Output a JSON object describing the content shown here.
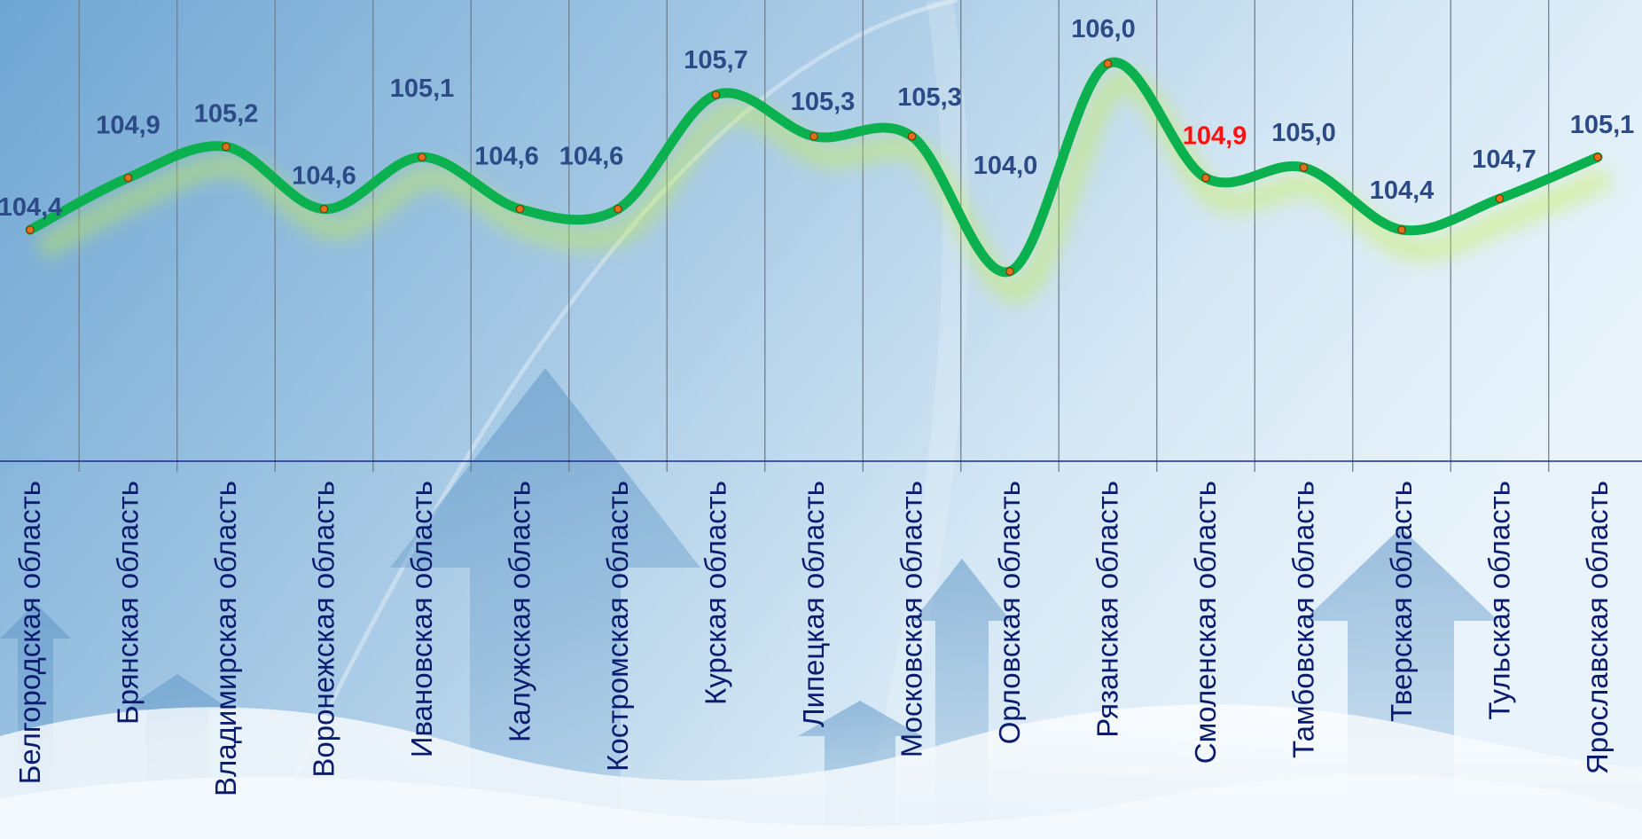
{
  "chart_data": {
    "type": "line",
    "categories": [
      "Белгородская область",
      "Брянская область",
      "Владимирская область",
      "Воронежская область",
      "Ивановская область",
      "Калужская область",
      "Костромская область",
      "Курская область",
      "Липецкая область",
      "Московская область",
      "Орловская область",
      "Рязанская область",
      "Смоленская область",
      "Тамбовская область",
      "Тверская область",
      "Тульская область",
      "Ярославская область"
    ],
    "values": [
      104.4,
      104.9,
      105.2,
      104.6,
      105.1,
      104.6,
      104.6,
      105.7,
      105.3,
      105.3,
      104.0,
      106.0,
      104.9,
      105.0,
      104.4,
      104.7,
      105.1
    ],
    "data_labels": [
      "104,4",
      "104,9",
      "105,2",
      "104,6",
      "105,1",
      "104,6",
      "104,6",
      "105,7",
      "105,3",
      "105,3",
      "104,0",
      "106,0",
      "104,9",
      "105,0",
      "104,4",
      "104,7",
      "105,1"
    ],
    "highlight_index": 12,
    "ylim": [
      103.0,
      106.4
    ],
    "title": "",
    "xlabel": "",
    "ylabel": "",
    "grid": "vertical",
    "legend": "none",
    "colors": {
      "line": "#0bb04f",
      "marker_fill": "#e0701a",
      "label": "#2b4a86",
      "highlight_label": "#ff1010",
      "category_label": "#0b1c6e",
      "grid": "#6f7f8e",
      "axis": "#1a2a8e"
    }
  }
}
